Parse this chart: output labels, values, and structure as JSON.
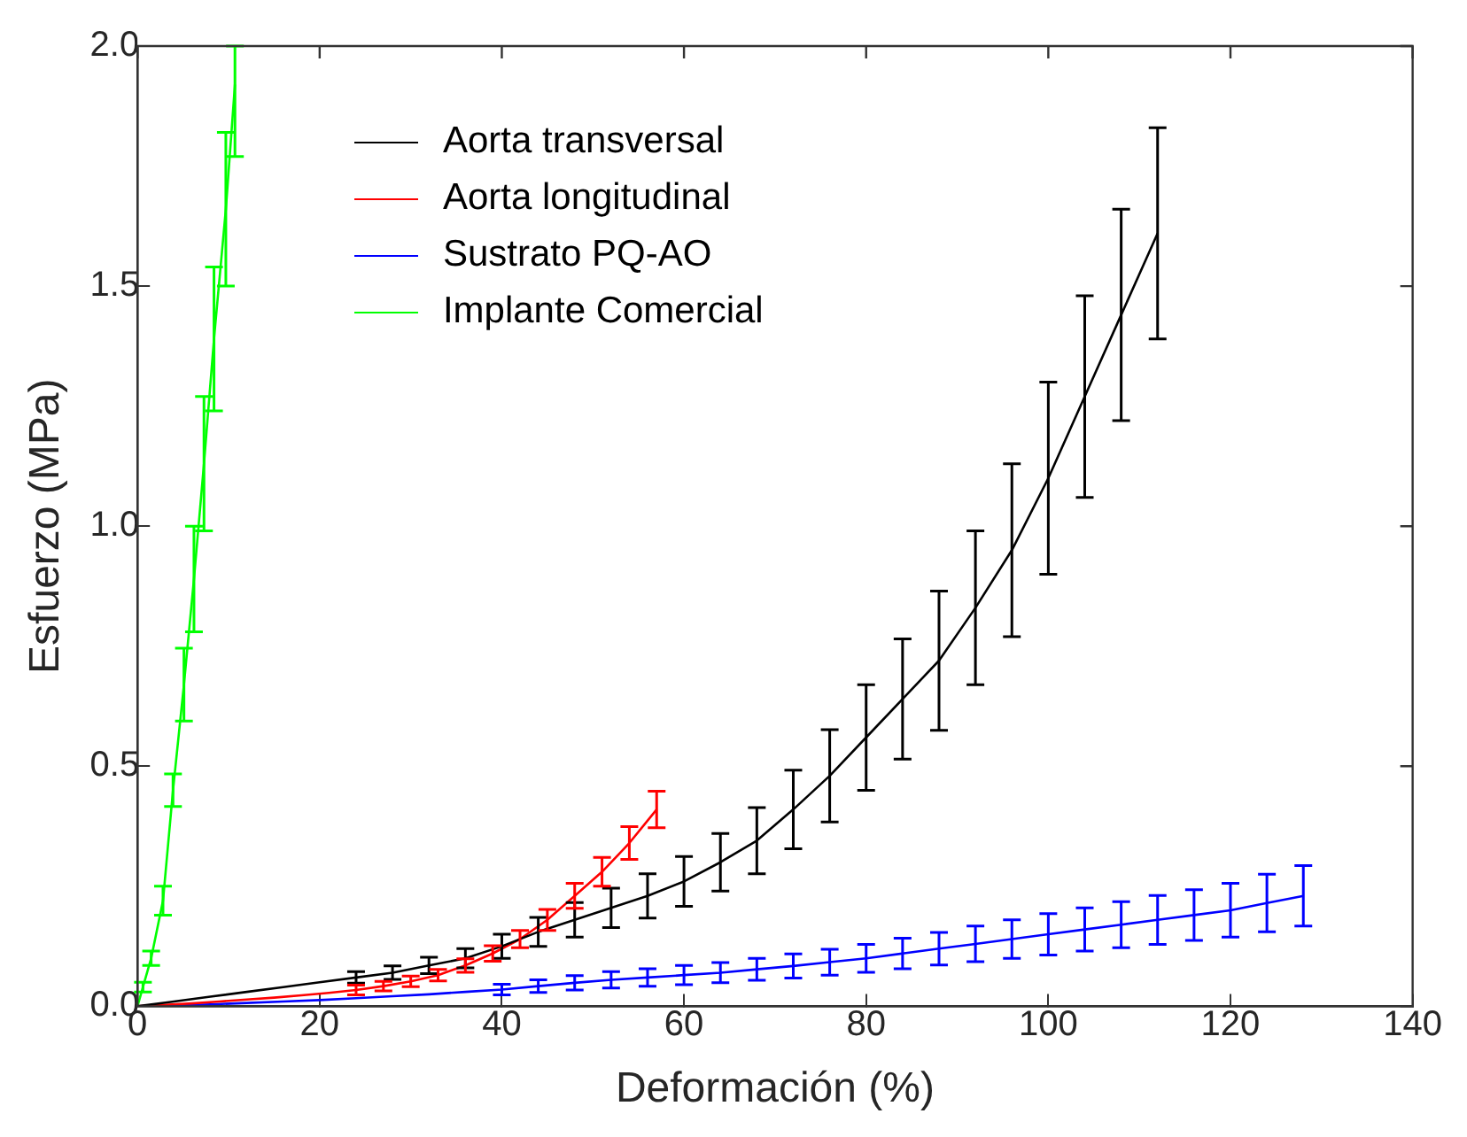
{
  "chart_data": {
    "type": "line",
    "xlabel": "Deformación (%)",
    "ylabel": "Esfuerzo (MPa)",
    "xlim": [
      0,
      140
    ],
    "xticks": [
      0,
      20,
      40,
      60,
      80,
      100,
      120,
      140
    ],
    "ylim": [
      0,
      2
    ],
    "yticks": [
      {
        "value": 0,
        "label": "0.0"
      },
      {
        "value": 0.5,
        "label": "0.5"
      },
      {
        "value": 1,
        "label": "1.0"
      },
      {
        "value": 1.5,
        "label": "1.5"
      },
      {
        "value": 2,
        "label": "2.0"
      }
    ],
    "grid": false,
    "legend": "top left",
    "marker": "none",
    "line_style": "solid",
    "series": [
      {
        "name": "Aorta transversal",
        "color": "#000000",
        "x": [
          0,
          4,
          8,
          12,
          16,
          20,
          24,
          28,
          32,
          36,
          40,
          44,
          48,
          52,
          56,
          60,
          64,
          68,
          72,
          76,
          80,
          84,
          88,
          92,
          96,
          100,
          104,
          108,
          112
        ],
        "values": [
          0,
          0.01,
          0.02,
          0.03,
          0.04,
          0.05,
          0.06,
          0.07,
          0.085,
          0.1,
          0.125,
          0.155,
          0.18,
          0.205,
          0.23,
          0.26,
          0.3,
          0.345,
          0.41,
          0.48,
          0.56,
          0.64,
          0.72,
          0.83,
          0.95,
          1.1,
          1.27,
          1.44,
          1.61
        ],
        "errors": [
          null,
          null,
          null,
          null,
          null,
          null,
          0.012,
          0.014,
          0.017,
          0.02,
          0.025,
          0.03,
          0.036,
          0.041,
          0.046,
          0.052,
          0.06,
          0.069,
          0.082,
          0.096,
          0.11,
          0.125,
          0.145,
          0.16,
          0.18,
          0.2,
          0.21,
          0.22,
          0.22
        ]
      },
      {
        "name": "Aorta longitudinal",
        "color": "#ff0000",
        "x": [
          0,
          3,
          6,
          9,
          12,
          15,
          18,
          21,
          24,
          27,
          30,
          33,
          36,
          39,
          42,
          45,
          48,
          51,
          54,
          57
        ],
        "values": [
          0,
          0.003,
          0.006,
          0.01,
          0.014,
          0.018,
          0.023,
          0.028,
          0.034,
          0.042,
          0.052,
          0.065,
          0.085,
          0.11,
          0.14,
          0.18,
          0.23,
          0.28,
          0.34,
          0.41
        ],
        "errors": [
          null,
          null,
          null,
          null,
          null,
          null,
          null,
          null,
          0.01,
          0.01,
          0.011,
          0.012,
          0.014,
          0.016,
          0.018,
          0.022,
          0.026,
          0.03,
          0.034,
          0.038
        ]
      },
      {
        "name": "Sustrato PQ-AO",
        "color": "#0000ff",
        "x": [
          0,
          8,
          12,
          16,
          20,
          24,
          28,
          32,
          36,
          40,
          44,
          48,
          52,
          56,
          60,
          64,
          68,
          72,
          76,
          80,
          84,
          88,
          92,
          96,
          100,
          104,
          108,
          112,
          116,
          120,
          124,
          128
        ],
        "values": [
          0,
          0.004,
          0.007,
          0.01,
          0.013,
          0.017,
          0.021,
          0.025,
          0.03,
          0.035,
          0.042,
          0.049,
          0.055,
          0.06,
          0.065,
          0.07,
          0.077,
          0.084,
          0.092,
          0.1,
          0.11,
          0.12,
          0.13,
          0.14,
          0.15,
          0.16,
          0.17,
          0.18,
          0.19,
          0.2,
          0.215,
          0.23
        ],
        "errors": [
          null,
          null,
          null,
          null,
          null,
          null,
          null,
          null,
          null,
          0.011,
          0.013,
          0.015,
          0.017,
          0.018,
          0.02,
          0.021,
          0.023,
          0.025,
          0.027,
          0.029,
          0.032,
          0.034,
          0.037,
          0.04,
          0.043,
          0.045,
          0.048,
          0.051,
          0.053,
          0.056,
          0.06,
          0.063
        ]
      },
      {
        "name": "Implante Comercial",
        "color": "#00ff00",
        "x": [
          0,
          0.6,
          1.5,
          2.8,
          3.9,
          5.1,
          6.2,
          7.3,
          8.4,
          9.7,
          10.7
        ],
        "values": [
          0,
          0.04,
          0.1,
          0.22,
          0.45,
          0.67,
          0.89,
          1.13,
          1.39,
          1.66,
          1.92
        ],
        "errors": [
          null,
          0.01,
          0.015,
          0.03,
          0.034,
          0.076,
          0.11,
          0.14,
          0.15,
          0.16,
          [
            1.77,
            2.0
          ]
        ]
      }
    ]
  }
}
